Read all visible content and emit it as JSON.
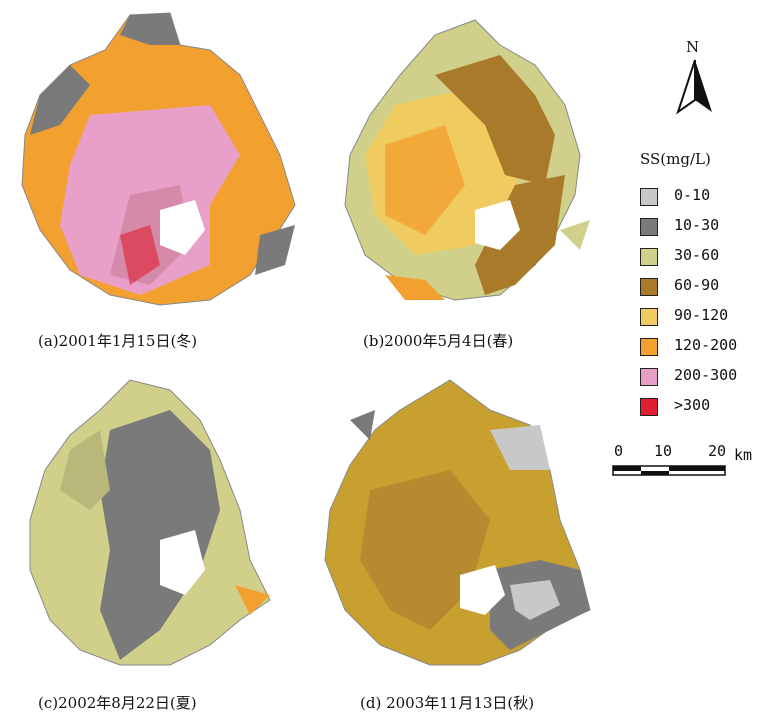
{
  "panels": [
    {
      "caption": "(a)2001年1月15日(冬)",
      "season": "winter"
    },
    {
      "caption": "(b)2000年5月4日(春)",
      "season": "spring"
    },
    {
      "caption": "(c)2002年8月22日(夏)",
      "season": "summer"
    },
    {
      "caption": "(d) 2003年11月13日(秋)",
      "season": "autumn"
    }
  ],
  "north_arrow": {
    "label": "N"
  },
  "legend": {
    "title": "SS(mg/L)",
    "items": [
      {
        "label": "0-10",
        "color": "#c8c8c8"
      },
      {
        "label": "10-30",
        "color": "#7a7a7a"
      },
      {
        "label": "30-60",
        "color": "#d0d08a"
      },
      {
        "label": "60-90",
        "color": "#a87a2a"
      },
      {
        "label": "90-120",
        "color": "#f0cc60"
      },
      {
        "label": "120-200",
        "color": "#f2a030"
      },
      {
        "label": "200-300",
        "color": "#e8a0c8"
      },
      {
        "label": ">300",
        "color": "#e02030"
      }
    ]
  },
  "scale_bar": {
    "ticks": [
      "0",
      "10",
      "20"
    ],
    "unit": "km"
  }
}
